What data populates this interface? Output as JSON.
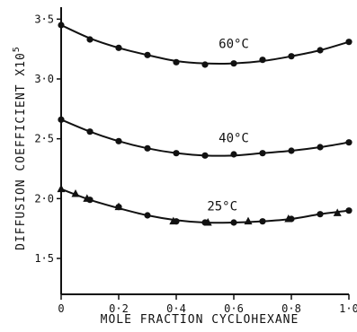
{
  "chart_data": {
    "type": "line",
    "title": "",
    "xlabel": "MOLE FRACTION CYCLOHEXANE",
    "ylabel": "DIFFUSION COEFFICIENT X10",
    "ylabel_exponent": "5",
    "xlim": [
      0,
      1.0
    ],
    "ylim": [
      1.2,
      3.6
    ],
    "x_ticks": [
      {
        "value": 0,
        "label": "0"
      },
      {
        "value": 0.2,
        "label": "0·2"
      },
      {
        "value": 0.4,
        "label": "0·4"
      },
      {
        "value": 0.6,
        "label": "0·6"
      },
      {
        "value": 0.8,
        "label": "0·8"
      },
      {
        "value": 1.0,
        "label": "1·0"
      }
    ],
    "y_ticks": [
      {
        "value": 1.5,
        "label": "1·5"
      },
      {
        "value": 2.0,
        "label": "2·0"
      },
      {
        "value": 2.5,
        "label": "2·5"
      },
      {
        "value": 3.0,
        "label": "3·0"
      },
      {
        "value": 3.5,
        "label": "3·5"
      }
    ],
    "grid": false,
    "series": [
      {
        "label": "60°C",
        "label_at": [
          0.6,
          3.26
        ],
        "marker": "circle",
        "points": [
          [
            0,
            3.45
          ],
          [
            0.1,
            3.33
          ],
          [
            0.2,
            3.26
          ],
          [
            0.3,
            3.2
          ],
          [
            0.4,
            3.14
          ],
          [
            0.5,
            3.12
          ],
          [
            0.6,
            3.13
          ],
          [
            0.7,
            3.16
          ],
          [
            0.8,
            3.19
          ],
          [
            0.9,
            3.24
          ],
          [
            1.0,
            3.31
          ]
        ],
        "curve": [
          [
            0,
            3.45
          ],
          [
            0.1,
            3.34
          ],
          [
            0.2,
            3.26
          ],
          [
            0.3,
            3.2
          ],
          [
            0.4,
            3.15
          ],
          [
            0.5,
            3.13
          ],
          [
            0.6,
            3.13
          ],
          [
            0.7,
            3.15
          ],
          [
            0.8,
            3.19
          ],
          [
            0.9,
            3.24
          ],
          [
            1.0,
            3.31
          ]
        ]
      },
      {
        "label": "40°C",
        "label_at": [
          0.6,
          2.47
        ],
        "marker": "circle",
        "points": [
          [
            0,
            2.66
          ],
          [
            0.1,
            2.56
          ],
          [
            0.2,
            2.48
          ],
          [
            0.3,
            2.42
          ],
          [
            0.4,
            2.38
          ],
          [
            0.5,
            2.36
          ],
          [
            0.6,
            2.37
          ],
          [
            0.7,
            2.38
          ],
          [
            0.8,
            2.4
          ],
          [
            0.9,
            2.43
          ],
          [
            1.0,
            2.47
          ]
        ],
        "curve": [
          [
            0,
            2.66
          ],
          [
            0.1,
            2.56
          ],
          [
            0.2,
            2.48
          ],
          [
            0.3,
            2.42
          ],
          [
            0.4,
            2.38
          ],
          [
            0.5,
            2.36
          ],
          [
            0.6,
            2.36
          ],
          [
            0.7,
            2.38
          ],
          [
            0.8,
            2.4
          ],
          [
            0.9,
            2.43
          ],
          [
            1.0,
            2.47
          ]
        ]
      },
      {
        "label": "25°C",
        "label_at": [
          0.56,
          1.9
        ],
        "marker": "circle",
        "points": [
          [
            0.1,
            1.99
          ],
          [
            0.2,
            1.93
          ],
          [
            0.3,
            1.86
          ],
          [
            0.4,
            1.81
          ],
          [
            0.5,
            1.8
          ],
          [
            0.6,
            1.8
          ],
          [
            0.7,
            1.81
          ],
          [
            0.8,
            1.83
          ],
          [
            0.9,
            1.87
          ],
          [
            1.0,
            1.9
          ]
        ],
        "curve": [
          [
            0,
            2.08
          ],
          [
            0.1,
            1.99
          ],
          [
            0.2,
            1.92
          ],
          [
            0.3,
            1.86
          ],
          [
            0.4,
            1.82
          ],
          [
            0.5,
            1.8
          ],
          [
            0.6,
            1.8
          ],
          [
            0.7,
            1.81
          ],
          [
            0.8,
            1.83
          ],
          [
            0.9,
            1.87
          ],
          [
            1.0,
            1.9
          ]
        ]
      },
      {
        "label": "",
        "marker": "triangle",
        "points": [
          [
            0.0,
            2.08
          ],
          [
            0.05,
            2.04
          ],
          [
            0.09,
            2.0
          ],
          [
            0.2,
            1.93
          ],
          [
            0.39,
            1.81
          ],
          [
            0.51,
            1.8
          ],
          [
            0.65,
            1.81
          ],
          [
            0.79,
            1.83
          ],
          [
            0.96,
            1.88
          ]
        ]
      }
    ]
  }
}
